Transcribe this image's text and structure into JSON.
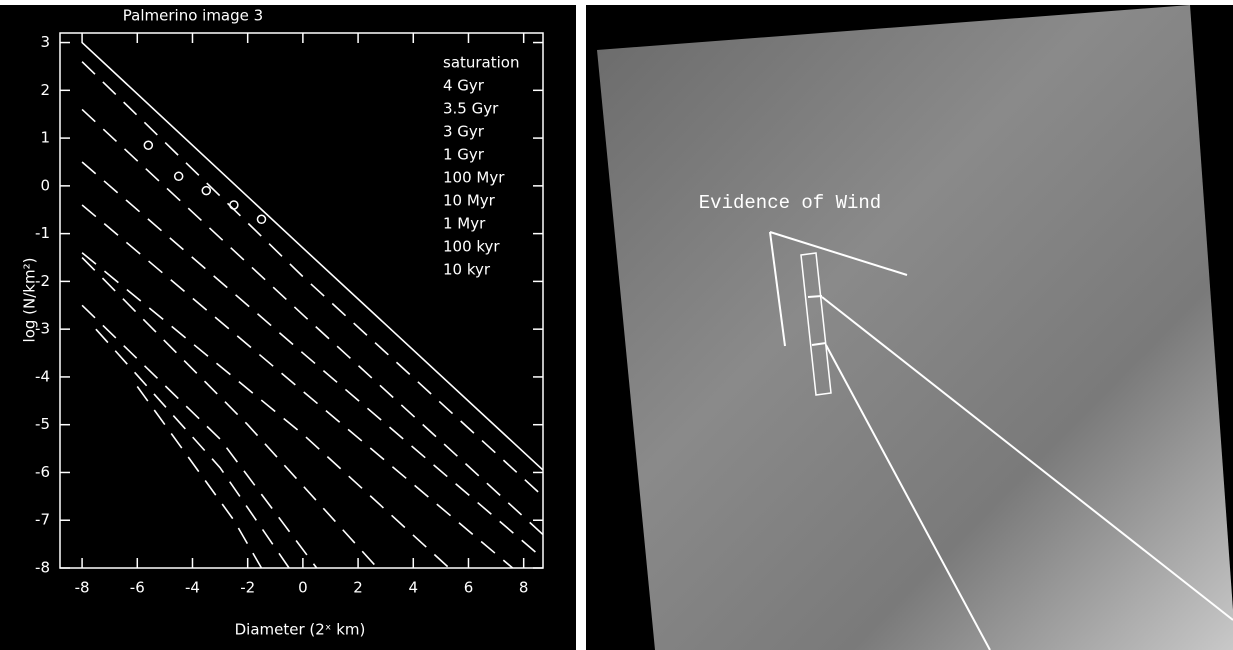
{
  "chart_data": {
    "type": "line",
    "title": "Palmerino image 3",
    "x_label": "Diameter (2ˣ km)",
    "y_label": "log (N/km²)",
    "xlim": [
      -8.8,
      8.7
    ],
    "ylim": [
      -8,
      3.2
    ],
    "xticks": [
      -8,
      -6,
      -4,
      -2,
      0,
      2,
      4,
      6,
      8
    ],
    "yticks": [
      -8,
      -7,
      -6,
      -5,
      -4,
      -3,
      -2,
      -1,
      0,
      1,
      2,
      3
    ],
    "legend": "upper right",
    "series": [
      {
        "name": "saturation",
        "color": "#ffffff",
        "linestyle": "solid",
        "x": [
          -8,
          0,
          8.7
        ],
        "values": [
          3,
          -1.3,
          -5.95
        ]
      },
      {
        "name": "4 Gyr",
        "color": "#ffffff",
        "linestyle": "dashed",
        "x": [
          -8,
          0,
          8.7
        ],
        "values": [
          2.6,
          -1.9,
          -6.5
        ]
      },
      {
        "name": "3.5 Gyr",
        "color": "#ffffff",
        "linestyle": "dashed",
        "x": [
          -8,
          0,
          8.7
        ],
        "values": [
          1.6,
          -2.7,
          -7.3
        ]
      },
      {
        "name": "3 Gyr",
        "color": "#ffffff",
        "linestyle": "dashed",
        "x": [
          -8,
          0,
          8.7
        ],
        "values": [
          0.5,
          -3.5,
          -7.8
        ]
      },
      {
        "name": "1 Gyr",
        "color": "#ffffff",
        "linestyle": "dashed",
        "x": [
          -8,
          0,
          7.6
        ],
        "values": [
          -0.4,
          -4.3,
          -8
        ]
      },
      {
        "name": "100 Myr",
        "color": "#ffffff",
        "linestyle": "dashed",
        "x": [
          -8,
          0,
          5.3
        ],
        "values": [
          -1.4,
          -5.2,
          -8
        ]
      },
      {
        "name": "10 Myr",
        "color": "#ffffff",
        "linestyle": "dashed",
        "x": [
          -8,
          -2,
          2.7
        ],
        "values": [
          -1.5,
          -5.0,
          -8
        ]
      },
      {
        "name": "1 Myr",
        "color": "#ffffff",
        "linestyle": "dashed",
        "x": [
          -8,
          -3,
          0.5
        ],
        "values": [
          -2.5,
          -5.3,
          -8
        ]
      },
      {
        "name": "100 kyr",
        "color": "#ffffff",
        "linestyle": "dashed",
        "x": [
          -7.5,
          -3,
          -0.5
        ],
        "values": [
          -3.0,
          -5.9,
          -8
        ]
      },
      {
        "name": "10 kyr",
        "color": "#ffffff",
        "linestyle": "dashed",
        "x": [
          -6,
          -2.5,
          -1.5
        ],
        "values": [
          -4.2,
          -7.0,
          -8
        ]
      }
    ],
    "points": {
      "x": [
        -5.6,
        -4.5,
        -3.5,
        -2.5,
        -1.5
      ],
      "y": [
        0.85,
        0.2,
        -0.1,
        -0.4,
        -0.7
      ]
    }
  },
  "image": {
    "annotation": "Evidence of Wind"
  }
}
